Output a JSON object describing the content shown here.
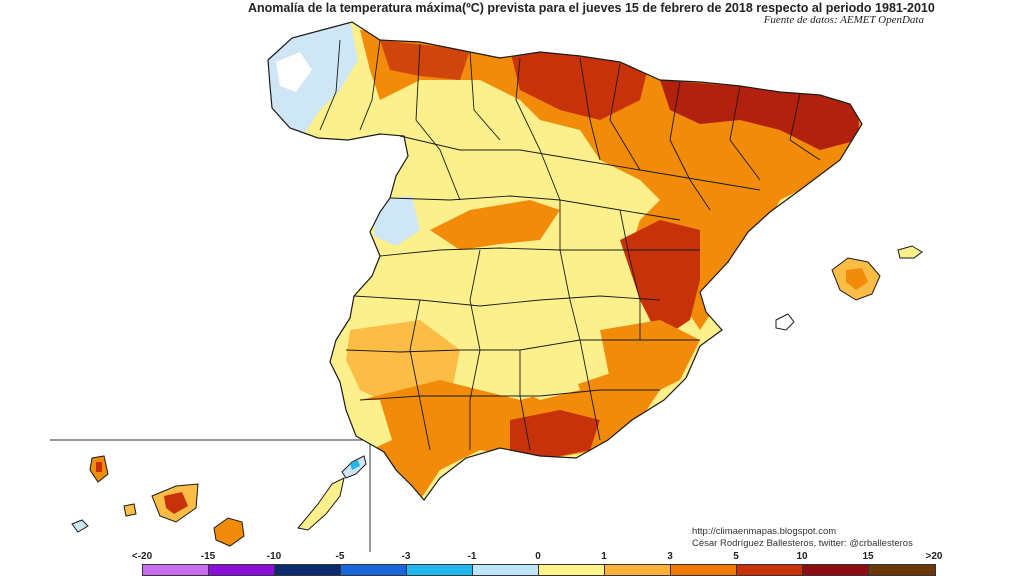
{
  "header": {
    "title": "Anomalía de la temperatura máxima(ºC) prevista para el jueves 15 de febrero de 2018 respecto al periodo 1981-2010",
    "source": "Fuente de datos: AEMET OpenData"
  },
  "credits": {
    "line1": "http://climaenmapas.blogspot.com",
    "line2": "César Rodríguez Ballesteros, twitter: @crballesteros"
  },
  "legend": {
    "ticks": [
      "<-20",
      "-15",
      "-10",
      "-5",
      "-3",
      "-1",
      "0",
      "1",
      "3",
      "5",
      "10",
      "15",
      ">20"
    ],
    "colors": [
      "#c86ef0",
      "#8a10d8",
      "#0c2a6e",
      "#1a66d8",
      "#22b8ee",
      "#bfe6f7",
      "#ffffff",
      "#fff58a",
      "#ffb23b",
      "#f07a00",
      "#c8320a",
      "#8c0d12",
      "#6a3808"
    ]
  },
  "map": {
    "colors": {
      "yellow": "#fcf08c",
      "light_orange": "#fbbd45",
      "orange": "#f28a0a",
      "dark_orange": "#cf450c",
      "red": "#b2200e",
      "light_blue": "#cfe6f6",
      "white": "#ffffff",
      "border": "#1a1a1a"
    }
  }
}
